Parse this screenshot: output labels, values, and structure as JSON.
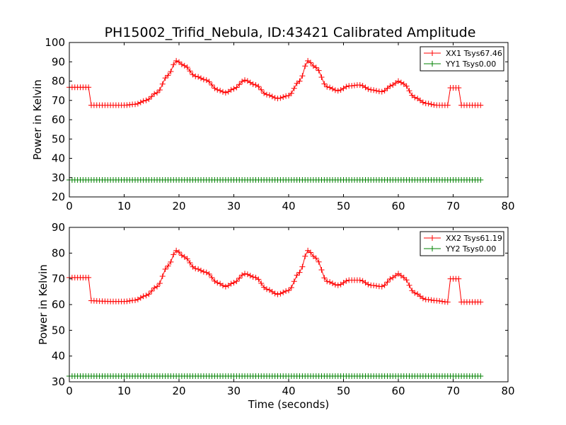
{
  "figure": {
    "title": "PH15002_Trifid_Nebula, ID:43421 Calibrated Amplitude"
  },
  "chart_data": [
    {
      "type": "line",
      "title": "PH15002_Trifid_Nebula, ID:43421 Calibrated Amplitude",
      "xlabel": "",
      "ylabel": "Power in Kelvin",
      "xlim": [
        0,
        80
      ],
      "ylim": [
        20,
        100
      ],
      "xticks": [
        0,
        10,
        20,
        30,
        40,
        50,
        60,
        70,
        80
      ],
      "yticks": [
        20,
        30,
        40,
        50,
        60,
        70,
        80,
        90,
        100
      ],
      "grid": false,
      "legend_position": "top-right",
      "marker": "+",
      "x_start": 0,
      "x_end": 75,
      "x_step": 0.5,
      "series": [
        {
          "name": "XX1 Tsys67.46",
          "color": "#ff0000",
          "points": [
            [
              0,
              76.8
            ],
            [
              2,
              76.8
            ],
            [
              3.5,
              76.8
            ],
            [
              4,
              67.5
            ],
            [
              6,
              67.5
            ],
            [
              8,
              67.5
            ],
            [
              10,
              67.5
            ],
            [
              12,
              68
            ],
            [
              14,
              70
            ],
            [
              16,
              74
            ],
            [
              18,
              83
            ],
            [
              19.5,
              90.5
            ],
            [
              21,
              88
            ],
            [
              23,
              82.5
            ],
            [
              25,
              80.5
            ],
            [
              27,
              75.5
            ],
            [
              28.5,
              74
            ],
            [
              30,
              76
            ],
            [
              32,
              80.5
            ],
            [
              34,
              78
            ],
            [
              36,
              73
            ],
            [
              38,
              71
            ],
            [
              40,
              72.5
            ],
            [
              42,
              80
            ],
            [
              43.5,
              90.5
            ],
            [
              45,
              87
            ],
            [
              47,
              77
            ],
            [
              49,
              75
            ],
            [
              51,
              77.5
            ],
            [
              53,
              78
            ],
            [
              55,
              75.5
            ],
            [
              57,
              74.5
            ],
            [
              59,
              78
            ],
            [
              60,
              80
            ],
            [
              61,
              78.5
            ],
            [
              63,
              71.5
            ],
            [
              65,
              68.5
            ],
            [
              67,
              67.5
            ],
            [
              69,
              67.5
            ],
            [
              69.5,
              76.5
            ],
            [
              71,
              76.5
            ],
            [
              71.5,
              67.5
            ],
            [
              73,
              67.5
            ],
            [
              75,
              67.5
            ]
          ]
        },
        {
          "name": "YY1 Tsys0.00",
          "color": "#008000",
          "points": [
            [
              0,
              28.8
            ],
            [
              75,
              28.8
            ]
          ]
        }
      ]
    },
    {
      "type": "line",
      "title": "",
      "xlabel": "Time (seconds)",
      "ylabel": "Power in Kelvin",
      "xlim": [
        0,
        80
      ],
      "ylim": [
        30,
        90
      ],
      "xticks": [
        0,
        10,
        20,
        30,
        40,
        50,
        60,
        70,
        80
      ],
      "yticks": [
        30,
        40,
        50,
        60,
        70,
        80,
        90
      ],
      "grid": false,
      "legend_position": "top-right",
      "marker": "+",
      "x_start": 0,
      "x_end": 75,
      "x_step": 0.5,
      "series": [
        {
          "name": "XX2 Tsys61.19",
          "color": "#ff0000",
          "points": [
            [
              0,
              70.5
            ],
            [
              2,
              70.5
            ],
            [
              3.5,
              70.5
            ],
            [
              4,
              61.5
            ],
            [
              6,
              61.3
            ],
            [
              8,
              61.2
            ],
            [
              10,
              61.2
            ],
            [
              12,
              61.7
            ],
            [
              14,
              63.5
            ],
            [
              16,
              67
            ],
            [
              18,
              75
            ],
            [
              19.5,
              81
            ],
            [
              21,
              78.5
            ],
            [
              23,
              74
            ],
            [
              25,
              72.5
            ],
            [
              27,
              68.5
            ],
            [
              28.5,
              67
            ],
            [
              30,
              68.5
            ],
            [
              32,
              72
            ],
            [
              34,
              70.5
            ],
            [
              36,
              66
            ],
            [
              38,
              64
            ],
            [
              40,
              65.5
            ],
            [
              42,
              72.5
            ],
            [
              43.5,
              81
            ],
            [
              45,
              78
            ],
            [
              47,
              69
            ],
            [
              49,
              67.5
            ],
            [
              51,
              69.5
            ],
            [
              53,
              69.5
            ],
            [
              55,
              67.5
            ],
            [
              57,
              67
            ],
            [
              59,
              70.5
            ],
            [
              60,
              72
            ],
            [
              61,
              70.5
            ],
            [
              63,
              64.5
            ],
            [
              65,
              62
            ],
            [
              67,
              61.5
            ],
            [
              69,
              61
            ],
            [
              69.5,
              70
            ],
            [
              71,
              70
            ],
            [
              71.5,
              61
            ],
            [
              73,
              61
            ],
            [
              75,
              61
            ]
          ]
        },
        {
          "name": "YY2 Tsys0.00",
          "color": "#008000",
          "points": [
            [
              0,
              32.2
            ],
            [
              75,
              32.2
            ]
          ]
        }
      ]
    }
  ]
}
